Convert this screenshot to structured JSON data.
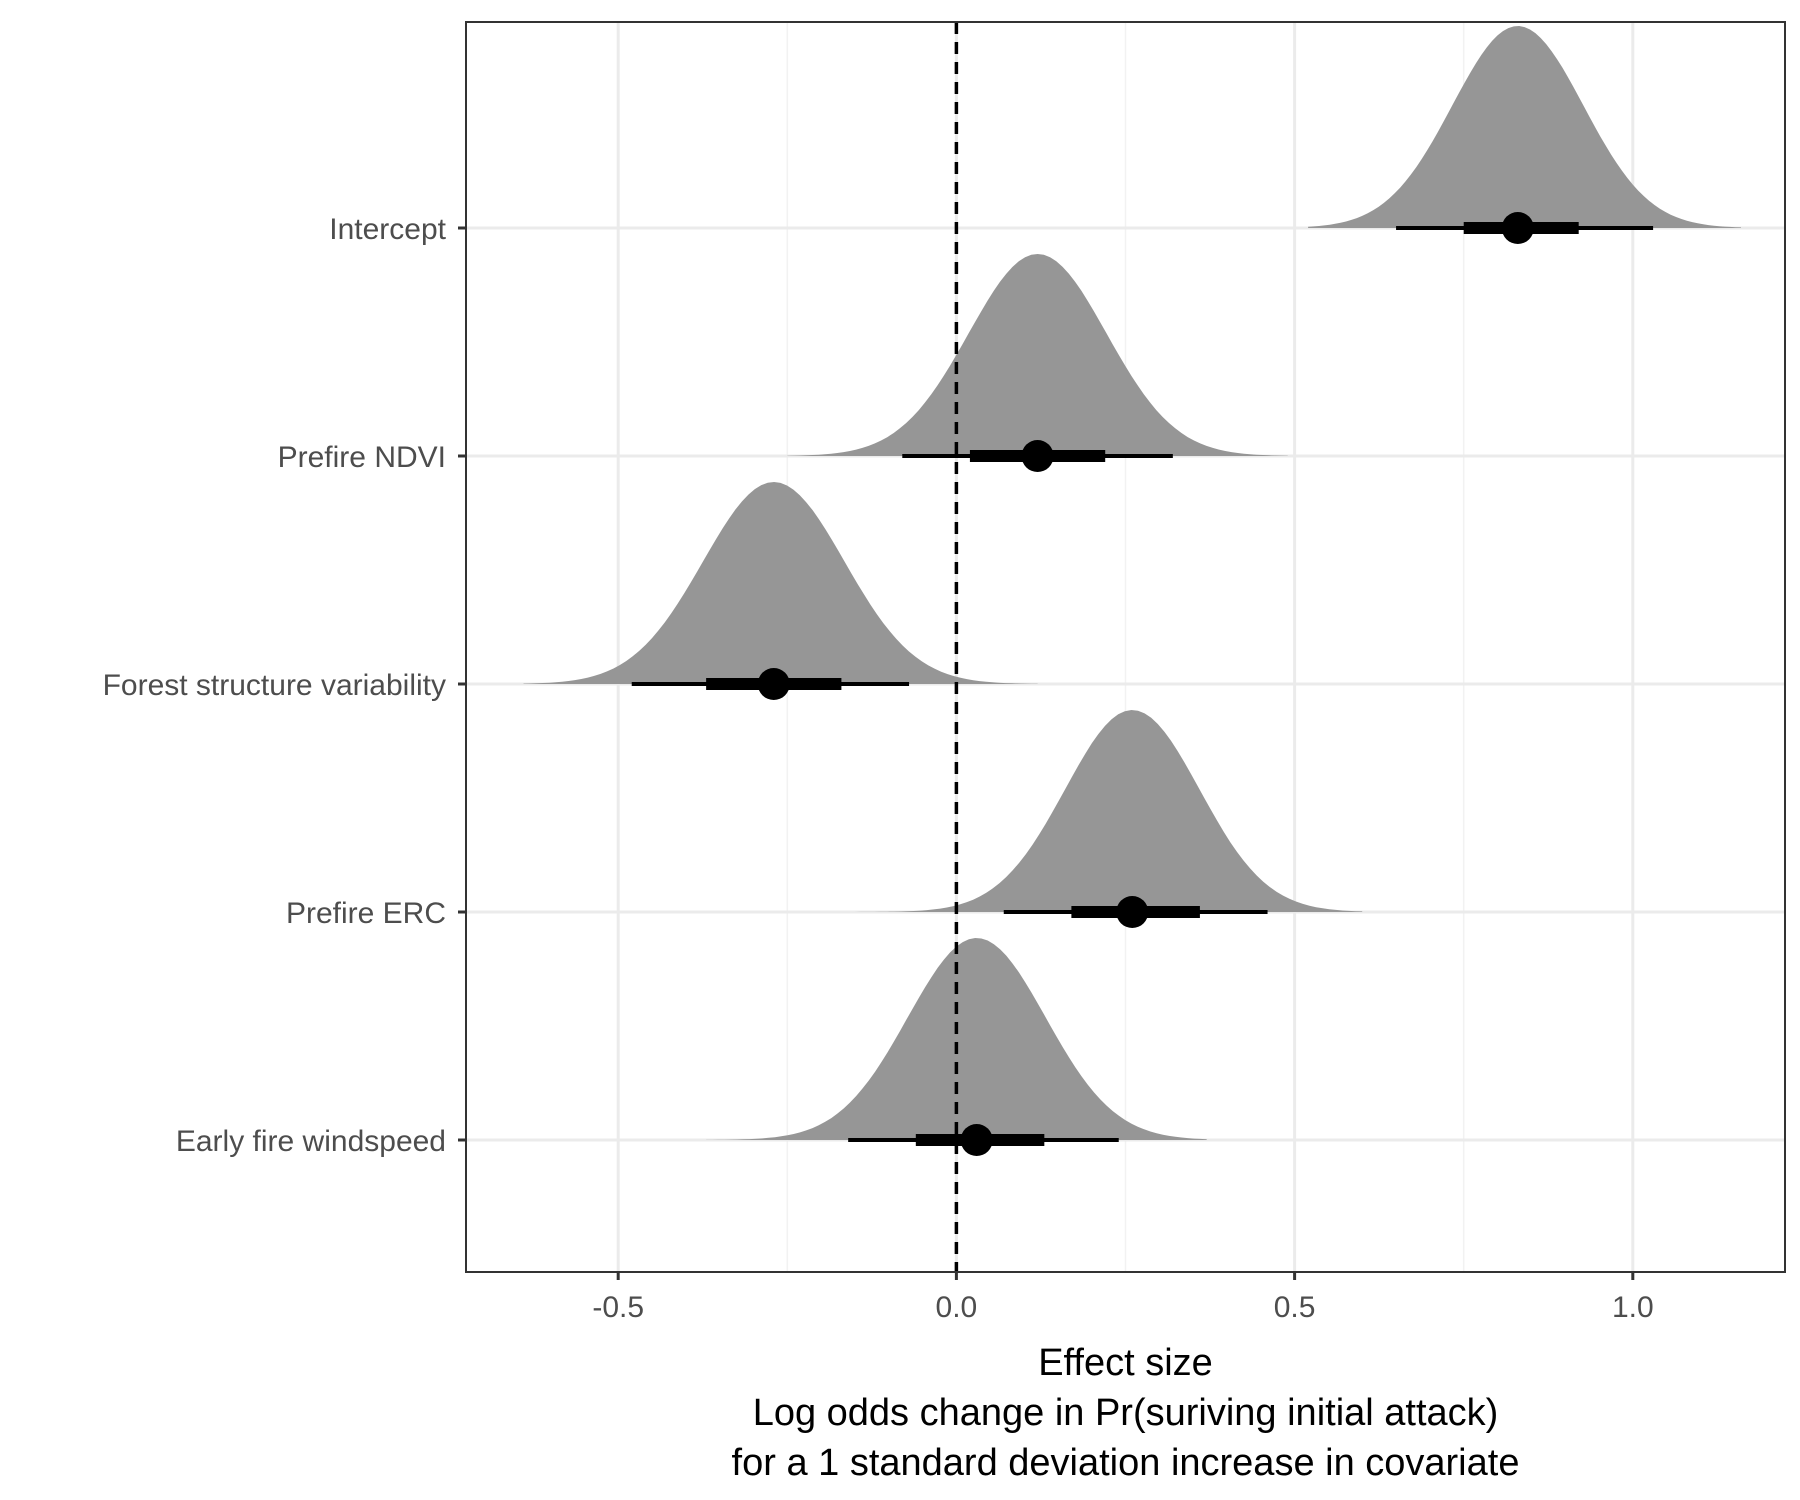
{
  "chart_data": {
    "type": "density-interval",
    "xlabel_lines": [
      "Effect size",
      "Log odds change in Pr(suriving initial attack)",
      "for a 1 standard deviation increase in covariate"
    ],
    "xlim": [
      -0.725,
      1.225
    ],
    "x_ticks": [
      -0.5,
      0.0,
      0.5,
      1.0
    ],
    "x_tick_labels": [
      "-0.5",
      "0.0",
      "0.5",
      "1.0"
    ],
    "reference_line": 0.0,
    "grid": true,
    "categories": [
      "Intercept",
      "Prefire NDVI",
      "Forest structure variability",
      "Prefire ERC",
      "Early fire windspeed"
    ],
    "series": [
      {
        "name": "Intercept",
        "median": 0.83,
        "interval_66": [
          0.75,
          0.92
        ],
        "interval_95": [
          0.65,
          1.03
        ],
        "density_range": [
          0.52,
          1.16
        ]
      },
      {
        "name": "Prefire NDVI",
        "median": 0.12,
        "interval_66": [
          0.02,
          0.22
        ],
        "interval_95": [
          -0.08,
          0.32
        ],
        "density_range": [
          -0.25,
          0.49
        ]
      },
      {
        "name": "Forest structure variability",
        "median": -0.27,
        "interval_66": [
          -0.37,
          -0.17
        ],
        "interval_95": [
          -0.48,
          -0.07
        ],
        "density_range": [
          -0.64,
          0.12
        ]
      },
      {
        "name": "Prefire ERC",
        "median": 0.26,
        "interval_66": [
          0.17,
          0.36
        ],
        "interval_95": [
          0.07,
          0.46
        ],
        "density_range": [
          -0.18,
          0.6
        ]
      },
      {
        "name": "Early fire windspeed",
        "median": 0.03,
        "interval_66": [
          -0.06,
          0.13
        ],
        "interval_95": [
          -0.16,
          0.24
        ],
        "density_range": [
          -0.37,
          0.37
        ]
      }
    ],
    "colors": {
      "density_fill": "#969696",
      "interval": "#000000",
      "panel_border": "#333333",
      "major_grid": "#ebebeb",
      "minor_grid": "#f2f2f2"
    }
  }
}
